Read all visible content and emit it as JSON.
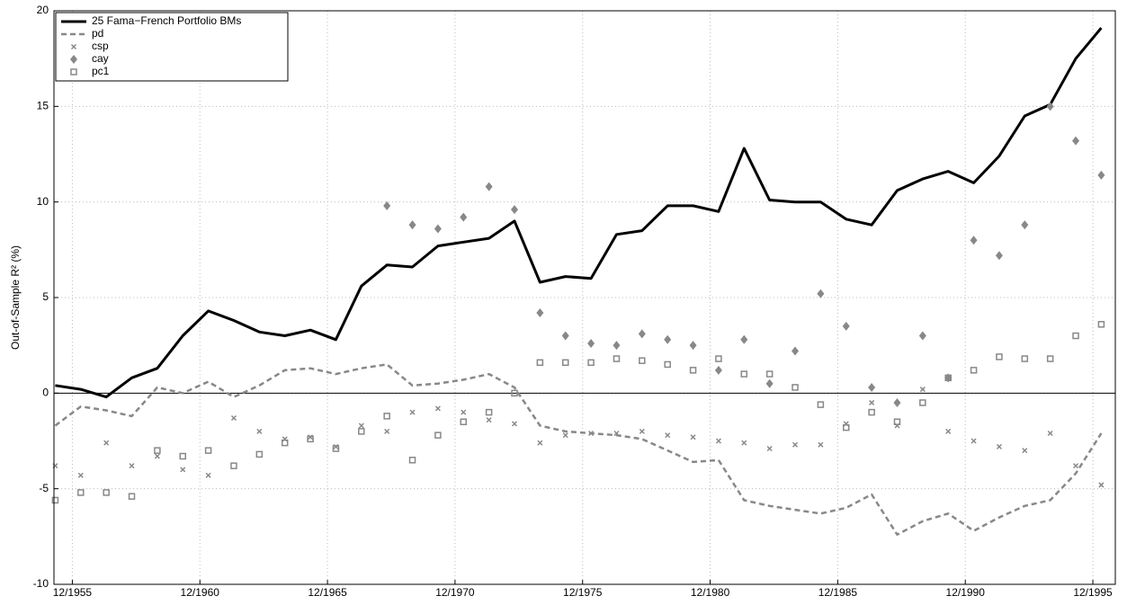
{
  "chart_data": {
    "type": "line",
    "ylabel": "Out-of-Sample R² (%)",
    "x": [
      1955.25,
      1956.25,
      1957.25,
      1958.25,
      1959.25,
      1960.25,
      1961.25,
      1962.25,
      1963.25,
      1964.25,
      1965.25,
      1966.25,
      1967.25,
      1968.25,
      1969.25,
      1970.25,
      1971.25,
      1972.25,
      1973.25,
      1974.25,
      1975.25,
      1976.25,
      1977.25,
      1978.25,
      1979.25,
      1980.25,
      1981.25,
      1982.25,
      1983.25,
      1984.25,
      1985.25,
      1986.25,
      1987.25,
      1988.25,
      1989.25,
      1990.25,
      1991.25,
      1992.25,
      1993.25,
      1994.25,
      1995.25,
      1996.25
    ],
    "xlim": [
      1955.2,
      1996.8
    ],
    "xticks": [
      {
        "value": 1955.92,
        "label": "12/1955"
      },
      {
        "value": 1960.92,
        "label": "12/1960"
      },
      {
        "value": 1965.92,
        "label": "12/1965"
      },
      {
        "value": 1970.92,
        "label": "12/1970"
      },
      {
        "value": 1975.92,
        "label": "12/1975"
      },
      {
        "value": 1980.92,
        "label": "12/1980"
      },
      {
        "value": 1985.92,
        "label": "12/1985"
      },
      {
        "value": 1990.92,
        "label": "12/1990"
      },
      {
        "value": 1995.92,
        "label": "12/1995"
      }
    ],
    "ylim": [
      -10,
      20
    ],
    "yticks": [
      -10,
      -5,
      0,
      5,
      10,
      15,
      20
    ],
    "grid": true,
    "zero_line": 0,
    "legend": "top-left",
    "series": [
      {
        "name": "25 Fama−French Portfolio BMs",
        "color": "#000000",
        "style": "solid",
        "values": [
          0.4,
          0.2,
          -0.2,
          0.8,
          1.3,
          3.0,
          4.3,
          3.8,
          3.2,
          3.0,
          3.3,
          2.8,
          5.6,
          6.7,
          6.6,
          7.7,
          7.9,
          8.1,
          9.0,
          5.8,
          6.1,
          6.0,
          8.3,
          8.5,
          9.8,
          9.8,
          9.5,
          12.8,
          10.1,
          10.0,
          10.0,
          9.1,
          8.8,
          10.6,
          11.2,
          11.6,
          11.0,
          12.4,
          14.5,
          15.1,
          17.5,
          19.1
        ]
      },
      {
        "name": "pd",
        "color": "#888888",
        "style": "dashed",
        "values": [
          -1.7,
          -0.7,
          -0.9,
          -1.2,
          0.3,
          0.0,
          0.6,
          -0.2,
          0.4,
          1.2,
          1.3,
          1.0,
          1.3,
          1.5,
          0.4,
          0.5,
          0.7,
          1.0,
          0.3,
          -1.7,
          -2.0,
          -2.1,
          -2.2,
          -2.4,
          -3.0,
          -3.6,
          -3.5,
          -5.6,
          -5.9,
          -6.1,
          -6.3,
          -6.0,
          -5.3,
          -7.4,
          -6.7,
          -6.3,
          -7.2,
          -6.5,
          -5.9,
          -5.6,
          -4.2,
          -2.1
        ]
      },
      {
        "name": "csp",
        "color": "#888888",
        "style": "x",
        "values": [
          -3.8,
          -4.3,
          -2.6,
          -3.8,
          -3.3,
          -4.0,
          -4.3,
          -1.3,
          -2.0,
          -2.4,
          -2.3,
          -2.8,
          -1.7,
          -2.0,
          -1.0,
          -0.8,
          -1.0,
          -1.4,
          -1.6,
          -2.6,
          -2.2,
          -2.1,
          -2.1,
          -2.0,
          -2.2,
          -2.3,
          -2.5,
          -2.6,
          -2.9,
          -2.7,
          -2.7,
          -1.6,
          -0.5,
          -1.7,
          0.2,
          -2.0,
          -2.5,
          -2.8,
          -3.0,
          -2.1,
          -3.8,
          -4.8
        ]
      },
      {
        "name": "cay",
        "color": "#888888",
        "style": "diamond",
        "values": [
          null,
          null,
          null,
          null,
          null,
          null,
          null,
          null,
          null,
          null,
          null,
          null,
          null,
          9.8,
          8.8,
          8.6,
          9.2,
          10.8,
          9.6,
          4.2,
          3.0,
          2.6,
          2.5,
          3.1,
          2.8,
          2.5,
          1.2,
          2.8,
          0.5,
          2.2,
          5.2,
          3.5,
          0.3,
          -0.5,
          3.0,
          0.8,
          8.0,
          7.2,
          8.8,
          15.0,
          13.2,
          11.4
        ]
      },
      {
        "name": "pc1",
        "color": "#888888",
        "style": "square",
        "values": [
          -5.6,
          -5.2,
          -5.2,
          -5.4,
          -3.0,
          -3.3,
          -3.0,
          -3.8,
          -3.2,
          -2.6,
          -2.4,
          -2.9,
          -2.0,
          -1.2,
          -3.5,
          -2.2,
          -1.5,
          -1.0,
          0.0,
          1.6,
          1.6,
          1.6,
          1.8,
          1.7,
          1.5,
          1.2,
          1.8,
          1.0,
          1.0,
          0.3,
          -0.6,
          -1.8,
          -1.0,
          -1.5,
          -0.5,
          0.8,
          1.2,
          1.9,
          1.8,
          1.8,
          3.0,
          3.6
        ]
      }
    ]
  }
}
